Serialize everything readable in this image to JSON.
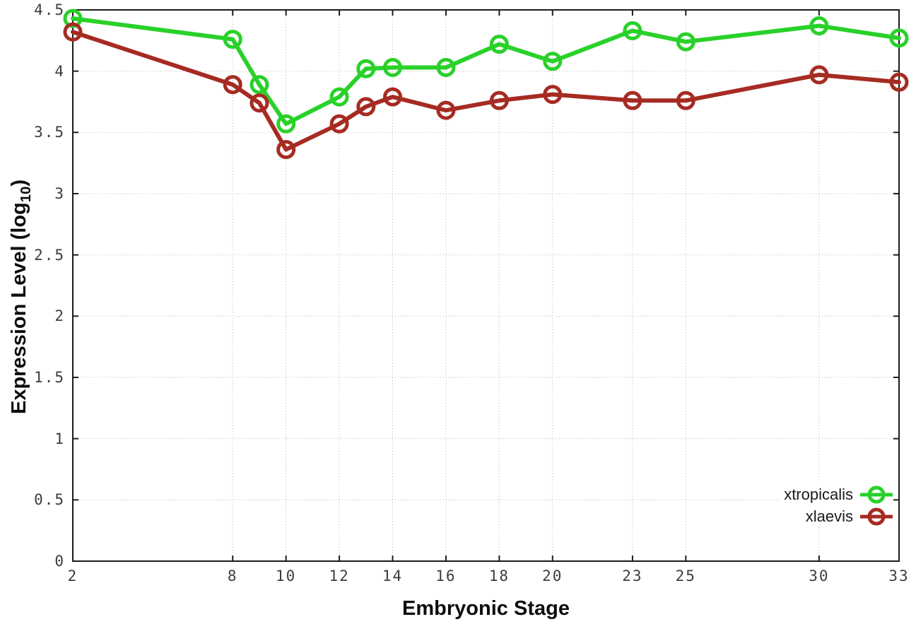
{
  "chart_data": {
    "type": "line",
    "x": [
      2,
      8,
      9,
      10,
      12,
      13,
      14,
      16,
      18,
      20,
      23,
      25,
      30,
      33
    ],
    "series": [
      {
        "name": "xtropicalis",
        "color": "#29d129",
        "values": [
          4.43,
          4.26,
          3.89,
          3.57,
          3.79,
          4.02,
          4.03,
          4.03,
          4.22,
          4.08,
          4.33,
          4.24,
          4.37,
          4.27
        ]
      },
      {
        "name": "xlaevis",
        "color": "#a62b22",
        "values": [
          4.32,
          3.89,
          3.74,
          3.36,
          3.57,
          3.71,
          3.79,
          3.68,
          3.76,
          3.81,
          3.76,
          3.76,
          3.97,
          3.91
        ]
      }
    ],
    "title": "",
    "xlabel": "Embryonic Stage",
    "ylabel": "Expression Level (log10)",
    "ylabel_parts": {
      "pre": "Expression Level (log",
      "sub": "10",
      "post": ")"
    },
    "xlim": [
      2,
      33
    ],
    "ylim": [
      0,
      4.5
    ],
    "x_tick_labels": [
      "2",
      "8",
      "10",
      "12",
      "14",
      "16",
      "18",
      "20",
      "23",
      "25",
      "30",
      "33"
    ],
    "y_tick_labels": [
      "0",
      "0.5",
      "1",
      "1.5",
      "2",
      "2.5",
      "3",
      "3.5",
      "4",
      "4.5"
    ],
    "grid": true,
    "legend_position": "inside-bottom-right",
    "marker": "open-circle"
  },
  "colors": {
    "background": "#ffffff",
    "border": "#1c1c1c",
    "gridline": "#b6b6b6",
    "tick_label": "#3d3d3d",
    "series_green": "#29d129",
    "series_red": "#a62b22"
  }
}
